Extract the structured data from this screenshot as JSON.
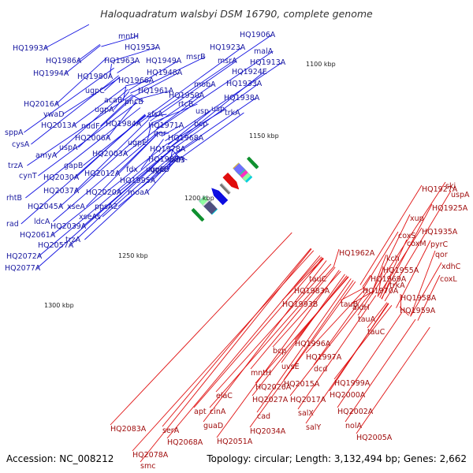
{
  "title": "Haloquadratum walsbyi DSM 16790, complete genome",
  "footer": {
    "accession": "Accession: NC_008212",
    "summary": "Topology: circular; Length: 3,132,494 bp; Genes: 2,662"
  },
  "colors": {
    "forward_strand": "#1010e0",
    "reverse_strand": "#e01010",
    "backbone": "#888888",
    "label_text_forward": "#1a1aa0",
    "label_text_reverse": "#a01010"
  },
  "kbp_ticks": [
    {
      "label": "1100 kbp"
    },
    {
      "label": "1150 kbp"
    },
    {
      "label": "1200 kbp"
    },
    {
      "label": "1250 kbp"
    },
    {
      "label": "1300 kbp"
    }
  ],
  "forward_labels": [
    "HQ1993A",
    "HQ1986A",
    "HQ1994A",
    "HQ1980A",
    "HQ2016A",
    "ywaD",
    "HQ2013A",
    "sppA",
    "cysA",
    "amyA",
    "trzA",
    "cynT",
    "rhtB",
    "HQ2045A",
    "rad",
    "HQ2061A",
    "HQ2072A",
    "HQ2077A",
    "mntH",
    "HQ1953A",
    "HQ1963A",
    "HQ1949A",
    "HQ1948A",
    "HQ1966A",
    "HQ1961A",
    "HQ1950A",
    "ugpC",
    "ugpA",
    "acaB",
    "pncB",
    "HQ1984A",
    "HQ1971A",
    "qor",
    "sfsA",
    "HQ1988A",
    "HQ1978A",
    "HQ1968A",
    "nudF",
    "uspA",
    "HQ2006A",
    "HQ2003A",
    "gapB",
    "HQ2012A",
    "HQ2030A",
    "HQ2037A",
    "HQ2020A",
    "HQ2039A",
    "ldcA",
    "HQ2057A",
    "xseA",
    "ppsA2",
    "xseAs",
    "trzA",
    "fdx",
    "ugpE",
    "ugpB",
    "HQ1995A",
    "moaA",
    "rad3",
    "msrB",
    "HQ1923A",
    "msrA",
    "HQ1906A",
    "malA",
    "HQ1913A",
    "HQ1924E",
    "mobA",
    "HQ1933A",
    "HQ1938A",
    "rtcB",
    "usp",
    "bcp",
    "trkA",
    "usp",
    "ugpB"
  ],
  "reverse_labels": [
    "ski",
    "uspA",
    "HQ1927A",
    "HQ1925A",
    "xup",
    "HQ1935A",
    "coxS",
    "pyrC",
    "coxM",
    "qor",
    "xdhC",
    "coxL",
    "HQ1962A",
    "kch",
    "HQ1955A",
    "HQ1969A",
    "trkA",
    "HQ1970A",
    "HQ1958A",
    "HQ1959A",
    "tauC",
    "HQ1983A",
    "HQ1993B",
    "aldH",
    "tauB",
    "tauA",
    "tauC",
    "HQ1996A",
    "bcp",
    "HQ1997A",
    "uvsE",
    "dcd",
    "mntH",
    "HQ1999A",
    "HQ2026A",
    "HQ2015A",
    "HQ2000A",
    "HQ2027A",
    "HQ2017A",
    "elaC",
    "cad",
    "salX",
    "HQ2002A",
    "apt",
    "cinA",
    "guaD",
    "HQ2034A",
    "salY",
    "nolA",
    "HQ2005A",
    "HQ2051A",
    "serA",
    "HQ2068A",
    "HQ2083A",
    "HQ2078A",
    "smc"
  ]
}
